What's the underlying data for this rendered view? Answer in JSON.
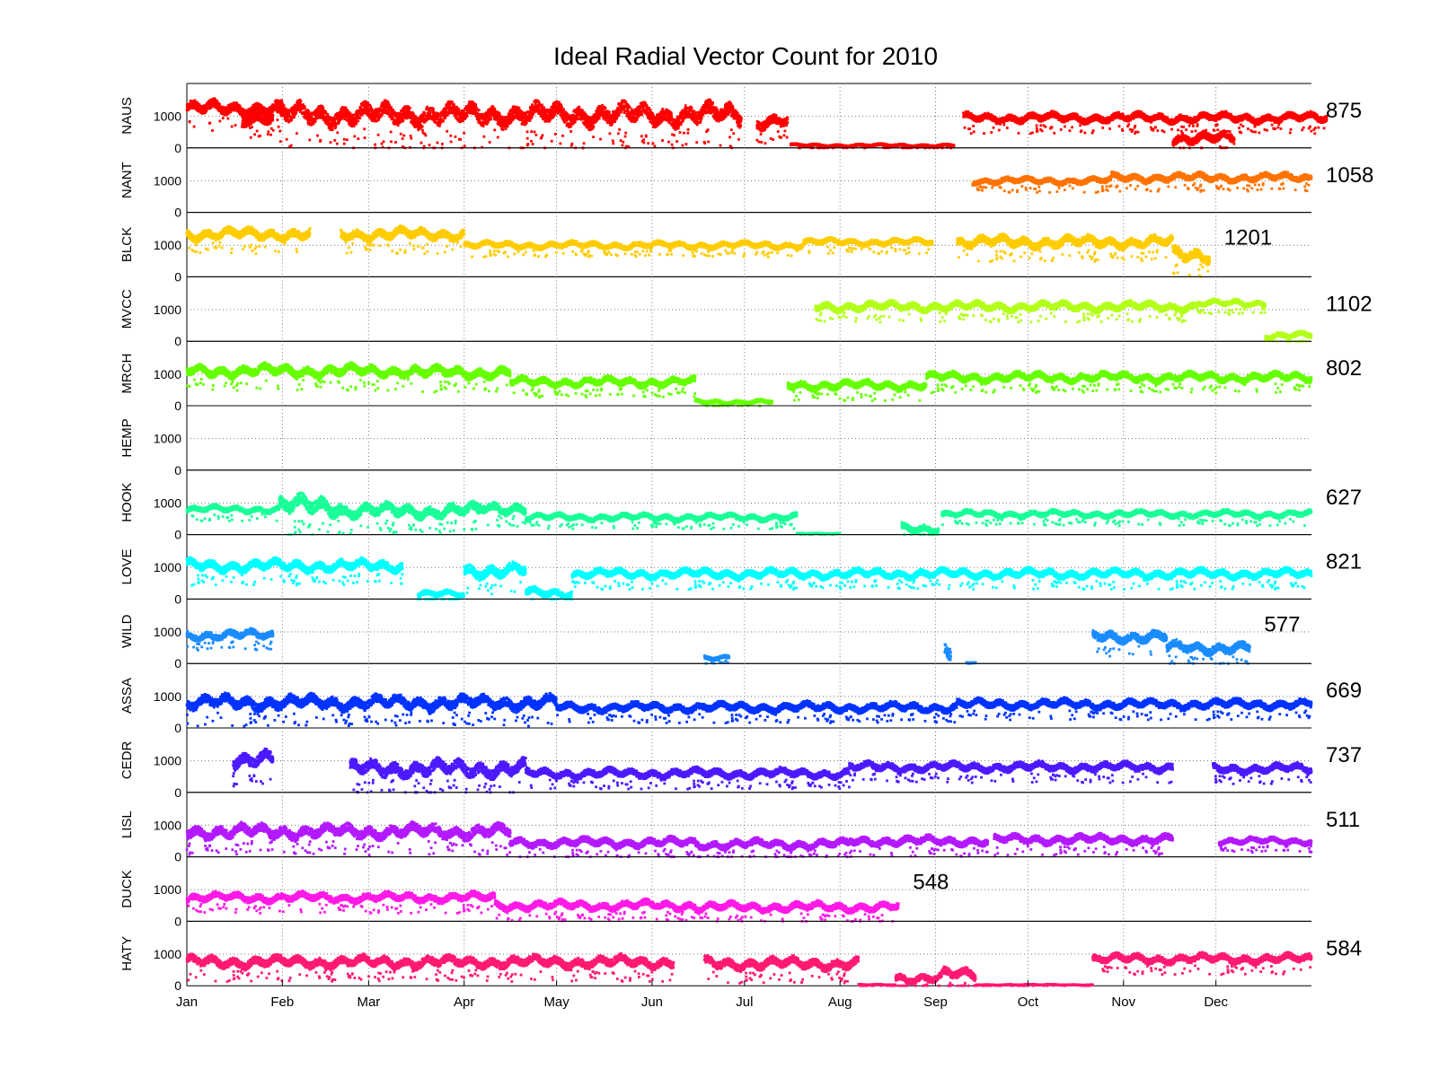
{
  "chart_data": {
    "type": "scatter",
    "title": "Ideal Radial Vector Count for 2010",
    "x_axis": {
      "ticks": [
        "Jan",
        "Feb",
        "Mar",
        "Apr",
        "May",
        "Jun",
        "Jul",
        "Aug",
        "Sep",
        "Oct",
        "Nov",
        "Dec"
      ],
      "range_days": [
        0,
        365
      ],
      "grid": "dotted vertical at month starts"
    },
    "y_axis": {
      "ticks": [
        "0",
        "1000"
      ],
      "ylim": [
        0,
        2000
      ],
      "grid": "dotted horizontal at 1000"
    },
    "series": [
      {
        "name": "NAUS",
        "color": "#ff0000",
        "latest": "875",
        "latest_pos": "right",
        "segments": [
          [
            0,
            31,
            1250,
            300
          ],
          [
            18,
            28,
            950,
            250
          ],
          [
            29,
            180,
            1050,
            450
          ],
          [
            185,
            195,
            850,
            300
          ],
          [
            196,
            249,
            80,
            60
          ],
          [
            252,
            370,
            950,
            200
          ],
          [
            320,
            340,
            300,
            250
          ]
        ]
      },
      {
        "name": "NANT",
        "color": "#ff7300",
        "latest": "1058",
        "latest_pos": "right",
        "segments": [
          [
            255,
            300,
            1000,
            150
          ],
          [
            300,
            365,
            1100,
            180
          ]
        ]
      },
      {
        "name": "BLCK",
        "color": "#ffcc00",
        "latest": "1201",
        "latest_pos": "inside",
        "segments": [
          [
            0,
            40,
            1350,
            250
          ],
          [
            50,
            90,
            1350,
            250
          ],
          [
            90,
            200,
            1000,
            150
          ],
          [
            200,
            242,
            1100,
            150
          ],
          [
            250,
            320,
            1100,
            250
          ],
          [
            320,
            332,
            700,
            300
          ]
        ]
      },
      {
        "name": "MVCC",
        "color": "#b3ff1a",
        "latest": "1102",
        "latest_pos": "right",
        "segments": [
          [
            204,
            328,
            1100,
            200
          ],
          [
            328,
            350,
            1200,
            150
          ],
          [
            350,
            365,
            180,
            150
          ]
        ]
      },
      {
        "name": "MRCH",
        "color": "#66ff00",
        "latest": "802",
        "latest_pos": "right",
        "segments": [
          [
            0,
            75,
            1100,
            250
          ],
          [
            75,
            105,
            1050,
            250
          ],
          [
            105,
            165,
            750,
            200
          ],
          [
            165,
            190,
            120,
            100
          ],
          [
            195,
            240,
            650,
            200
          ],
          [
            240,
            365,
            900,
            200
          ]
        ]
      },
      {
        "name": "HEMP",
        "color": "#33ff66",
        "latest": "",
        "latest_pos": "none",
        "segments": []
      },
      {
        "name": "HOOK",
        "color": "#1aff99",
        "latest": "627",
        "latest_pos": "right",
        "segments": [
          [
            0,
            30,
            800,
            150
          ],
          [
            30,
            50,
            900,
            400
          ],
          [
            50,
            95,
            750,
            300
          ],
          [
            95,
            110,
            850,
            250
          ],
          [
            110,
            198,
            550,
            150
          ],
          [
            198,
            212,
            30,
            20
          ],
          [
            232,
            244,
            200,
            200
          ],
          [
            245,
            365,
            650,
            150
          ]
        ]
      },
      {
        "name": "LOVE",
        "color": "#00ffff",
        "latest": "821",
        "latest_pos": "right",
        "segments": [
          [
            0,
            70,
            1050,
            250
          ],
          [
            75,
            90,
            150,
            150
          ],
          [
            90,
            110,
            900,
            300
          ],
          [
            110,
            125,
            200,
            200
          ],
          [
            125,
            365,
            800,
            200
          ]
        ]
      },
      {
        "name": "WILD",
        "color": "#1a8cff",
        "latest": "577",
        "latest_pos": "inside",
        "segments": [
          [
            0,
            28,
            900,
            200
          ],
          [
            168,
            176,
            200,
            100
          ],
          [
            246,
            248,
            500,
            400
          ],
          [
            253,
            256,
            30,
            20
          ],
          [
            294,
            318,
            850,
            250
          ],
          [
            318,
            345,
            500,
            250
          ]
        ]
      },
      {
        "name": "ASSA",
        "color": "#0033ff",
        "latest": "669",
        "latest_pos": "right",
        "segments": [
          [
            0,
            120,
            800,
            300
          ],
          [
            120,
            250,
            650,
            200
          ],
          [
            250,
            365,
            750,
            200
          ]
        ]
      },
      {
        "name": "CEDR",
        "color": "#4d1aff",
        "latest": "737",
        "latest_pos": "right",
        "segments": [
          [
            15,
            28,
            1050,
            350
          ],
          [
            53,
            110,
            750,
            350
          ],
          [
            110,
            215,
            600,
            200
          ],
          [
            215,
            320,
            800,
            200
          ],
          [
            333,
            365,
            750,
            200
          ]
        ]
      },
      {
        "name": "LISL",
        "color": "#b31aff",
        "latest": "511",
        "latest_pos": "right",
        "segments": [
          [
            0,
            105,
            800,
            300
          ],
          [
            105,
            165,
            450,
            200
          ],
          [
            165,
            215,
            400,
            200
          ],
          [
            215,
            260,
            500,
            200
          ],
          [
            262,
            320,
            550,
            200
          ],
          [
            335,
            365,
            500,
            150
          ]
        ]
      },
      {
        "name": "DUCK",
        "color": "#ff1ae6",
        "latest": "548",
        "latest_pos": "inside",
        "segments": [
          [
            0,
            100,
            750,
            200
          ],
          [
            100,
            165,
            500,
            200
          ],
          [
            165,
            231,
            450,
            200
          ]
        ]
      },
      {
        "name": "HATY",
        "color": "#ff1a73",
        "latest": "584",
        "latest_pos": "right",
        "segments": [
          [
            0,
            158,
            750,
            250
          ],
          [
            168,
            218,
            700,
            250
          ],
          [
            218,
            230,
            30,
            20
          ],
          [
            230,
            245,
            250,
            200
          ],
          [
            245,
            256,
            350,
            250
          ],
          [
            256,
            294,
            30,
            20
          ],
          [
            294,
            322,
            850,
            200
          ],
          [
            322,
            365,
            850,
            200
          ]
        ]
      }
    ]
  }
}
